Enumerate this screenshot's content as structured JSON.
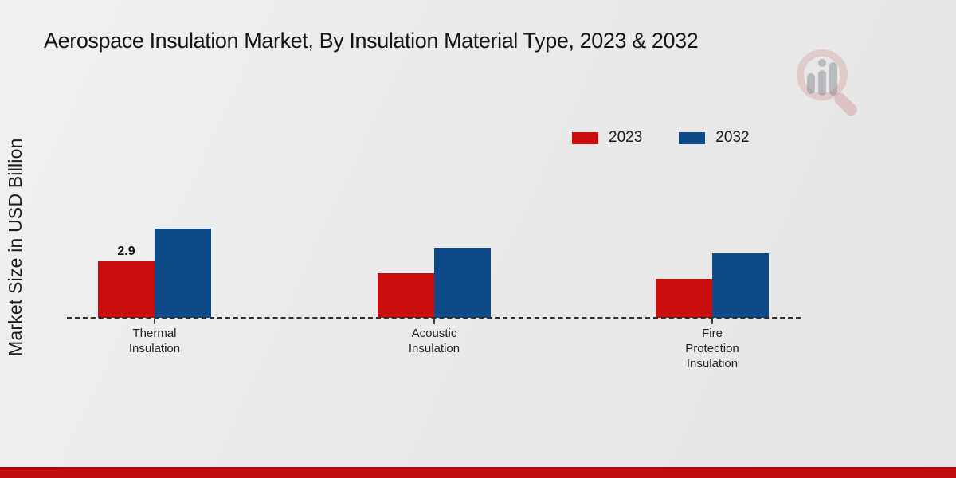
{
  "title": "Aerospace Insulation Market, By Insulation Material Type, 2023 & 2032",
  "y_axis_label": "Market Size in USD Billion",
  "watermark": {
    "name": "magnifier-bar-chart-logo"
  },
  "footer": {
    "color": "#c20d10"
  },
  "chart_data": {
    "type": "bar",
    "title": "Aerospace Insulation Market, By Insulation Material Type, 2023 & 2032",
    "ylabel": "Market Size in USD Billion",
    "xlabel": "",
    "categories": [
      "Thermal Insulation",
      "Acoustic Insulation",
      "Fire Protection Insulation"
    ],
    "series": [
      {
        "name": "2023",
        "color": "#c90d0d",
        "values": [
          2.9,
          2.3,
          2.0
        ]
      },
      {
        "name": "2032",
        "color": "#0d4a87",
        "values": [
          4.6,
          3.6,
          3.3
        ]
      }
    ],
    "data_labels": [
      {
        "series_index": 0,
        "category_index": 0,
        "text": "2.9"
      }
    ],
    "ylim": [
      0,
      5
    ],
    "grid": false,
    "axis_style": "dashed-baseline",
    "legend_position": "top-right"
  }
}
